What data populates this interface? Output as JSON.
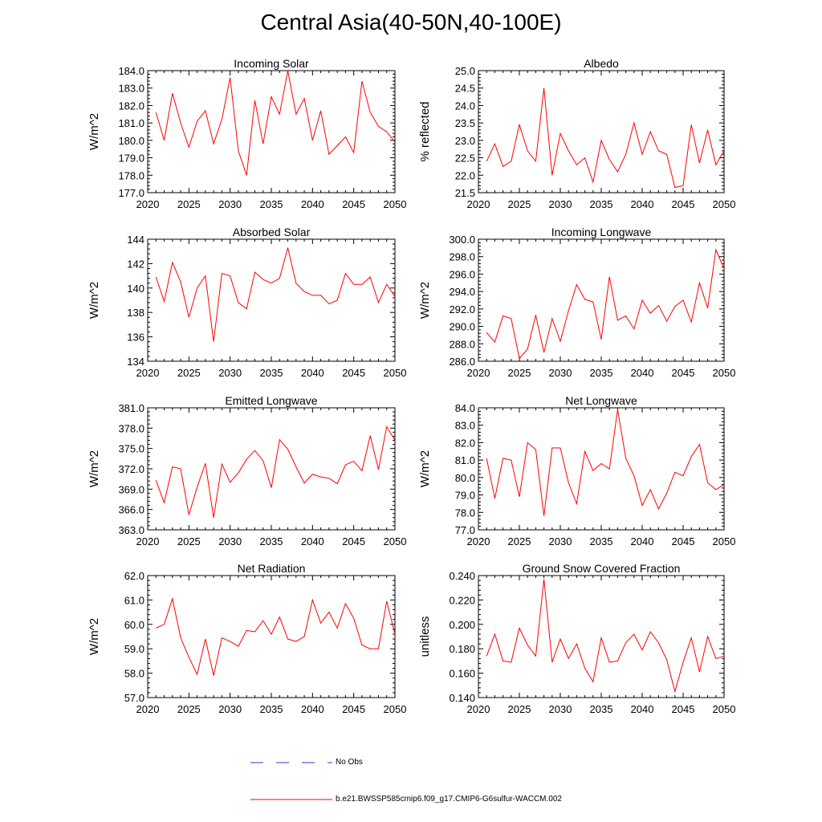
{
  "title": "Central Asia(40-50N,40-100E)",
  "colors": {
    "series": "#ff0000",
    "no_obs": "#3333cc",
    "axis": "#000000"
  },
  "legend": {
    "no_obs_label": "No Obs",
    "series_label": "b.e21.BWSSP585cmip6.f09_g17.CMIP6-G6sulfur-WACCM.002"
  },
  "chart_data": [
    {
      "type": "line",
      "title": "Incoming Solar",
      "ylabel": "W/m^2",
      "xlim": [
        2020,
        2050
      ],
      "ylim": [
        177.0,
        184.0
      ],
      "xticks": [
        2020,
        2025,
        2030,
        2035,
        2040,
        2045,
        2050
      ],
      "yticks": [
        "177.0",
        "178.0",
        "179.0",
        "180.0",
        "181.0",
        "182.0",
        "183.0",
        "184.0"
      ],
      "series": [
        {
          "x": [
            2021,
            2022,
            2023,
            2024,
            2025,
            2026,
            2027,
            2028,
            2029,
            2030,
            2031,
            2032,
            2033,
            2034,
            2035,
            2036,
            2037,
            2038,
            2039,
            2040,
            2041,
            2042,
            2043,
            2044,
            2045,
            2046,
            2047,
            2048,
            2049,
            2050
          ],
          "values": [
            181.6,
            180.0,
            182.7,
            181.0,
            179.6,
            181.1,
            181.7,
            179.8,
            181.2,
            183.6,
            179.4,
            178.0,
            182.3,
            179.8,
            182.5,
            181.5,
            184.0,
            181.5,
            182.4,
            180.0,
            181.7,
            179.2,
            179.7,
            180.2,
            179.3,
            183.4,
            181.6,
            180.8,
            180.5,
            179.9
          ]
        }
      ]
    },
    {
      "type": "line",
      "title": "Albedo",
      "ylabel": "% reflected",
      "xlim": [
        2020,
        2050
      ],
      "ylim": [
        21.5,
        25.0
      ],
      "xticks": [
        2020,
        2025,
        2030,
        2035,
        2040,
        2045,
        2050
      ],
      "yticks": [
        "21.5",
        "22.0",
        "22.5",
        "23.0",
        "23.5",
        "24.0",
        "24.5",
        "25.0"
      ],
      "series": [
        {
          "x": [
            2021,
            2022,
            2023,
            2024,
            2025,
            2026,
            2027,
            2028,
            2029,
            2030,
            2031,
            2032,
            2033,
            2034,
            2035,
            2036,
            2037,
            2038,
            2039,
            2040,
            2041,
            2042,
            2043,
            2044,
            2045,
            2046,
            2047,
            2048,
            2049,
            2050
          ],
          "values": [
            22.4,
            22.9,
            22.25,
            22.4,
            23.45,
            22.7,
            22.4,
            24.5,
            22.0,
            23.2,
            22.7,
            22.3,
            22.5,
            21.8,
            23.0,
            22.45,
            22.1,
            22.6,
            23.5,
            22.6,
            23.25,
            22.7,
            22.6,
            21.65,
            21.7,
            23.45,
            22.35,
            23.3,
            22.3,
            22.7
          ]
        }
      ]
    },
    {
      "type": "line",
      "title": "Absorbed Solar",
      "ylabel": "W/m^2",
      "xlim": [
        2020,
        2050
      ],
      "ylim": [
        134,
        144
      ],
      "xticks": [
        2020,
        2025,
        2030,
        2035,
        2040,
        2045,
        2050
      ],
      "yticks": [
        "134",
        "136",
        "138",
        "140",
        "142",
        "144"
      ],
      "series": [
        {
          "x": [
            2021,
            2022,
            2023,
            2024,
            2025,
            2026,
            2027,
            2028,
            2029,
            2030,
            2031,
            2032,
            2033,
            2034,
            2035,
            2036,
            2037,
            2038,
            2039,
            2040,
            2041,
            2042,
            2043,
            2044,
            2045,
            2046,
            2047,
            2048,
            2049,
            2050
          ],
          "values": [
            140.9,
            138.9,
            142.1,
            140.5,
            137.6,
            140.0,
            141.0,
            135.6,
            141.2,
            141.0,
            138.8,
            138.3,
            141.3,
            140.7,
            140.4,
            140.8,
            143.3,
            140.4,
            139.7,
            139.4,
            139.4,
            138.7,
            139.0,
            141.2,
            140.3,
            140.3,
            140.9,
            138.8,
            140.3,
            139.3
          ]
        }
      ]
    },
    {
      "type": "line",
      "title": "Incoming Longwave",
      "ylabel": "W/m^2",
      "xlim": [
        2020,
        2050
      ],
      "ylim": [
        286.0,
        300.0
      ],
      "xticks": [
        2020,
        2025,
        2030,
        2035,
        2040,
        2045,
        2050
      ],
      "yticks": [
        "286.0",
        "288.0",
        "290.0",
        "292.0",
        "294.0",
        "296.0",
        "298.0",
        "300.0"
      ],
      "series": [
        {
          "x": [
            2021,
            2022,
            2023,
            2024,
            2025,
            2026,
            2027,
            2028,
            2029,
            2030,
            2031,
            2032,
            2033,
            2034,
            2035,
            2036,
            2037,
            2038,
            2039,
            2040,
            2041,
            2042,
            2043,
            2044,
            2045,
            2046,
            2047,
            2048,
            2049,
            2050
          ],
          "values": [
            289.3,
            288.2,
            291.2,
            290.9,
            286.3,
            287.4,
            291.3,
            287.0,
            290.9,
            288.3,
            291.8,
            294.8,
            293.1,
            292.8,
            288.5,
            295.7,
            290.7,
            291.2,
            289.7,
            293.0,
            291.5,
            292.4,
            290.6,
            292.3,
            293.0,
            290.5,
            295.0,
            292.1,
            298.8,
            296.6
          ]
        }
      ]
    },
    {
      "type": "line",
      "title": "Emitted Longwave",
      "ylabel": "W/m^2",
      "xlim": [
        2020,
        2050
      ],
      "ylim": [
        363.0,
        381.0
      ],
      "xticks": [
        2020,
        2025,
        2030,
        2035,
        2040,
        2045,
        2050
      ],
      "yticks": [
        "363.0",
        "366.0",
        "369.0",
        "372.0",
        "375.0",
        "378.0",
        "381.0"
      ],
      "series": [
        {
          "x": [
            2021,
            2022,
            2023,
            2024,
            2025,
            2026,
            2027,
            2028,
            2029,
            2030,
            2031,
            2032,
            2033,
            2034,
            2035,
            2036,
            2037,
            2038,
            2039,
            2040,
            2041,
            2042,
            2043,
            2044,
            2045,
            2046,
            2047,
            2048,
            2049,
            2050
          ],
          "values": [
            370.3,
            367.0,
            372.3,
            372.0,
            365.2,
            369.3,
            372.8,
            364.8,
            372.7,
            370.0,
            371.4,
            373.4,
            374.7,
            373.2,
            369.2,
            376.3,
            374.9,
            372.3,
            369.9,
            371.2,
            370.8,
            370.6,
            369.8,
            372.6,
            373.1,
            371.7,
            376.9,
            371.9,
            378.2,
            376.2
          ]
        }
      ]
    },
    {
      "type": "line",
      "title": "Net Longwave",
      "ylabel": "W/m^2",
      "xlim": [
        2020,
        2050
      ],
      "ylim": [
        77.0,
        84.0
      ],
      "xticks": [
        2020,
        2025,
        2030,
        2035,
        2040,
        2045,
        2050
      ],
      "yticks": [
        "77.0",
        "78.0",
        "79.0",
        "80.0",
        "81.0",
        "82.0",
        "83.0",
        "84.0"
      ],
      "series": [
        {
          "x": [
            2021,
            2022,
            2023,
            2024,
            2025,
            2026,
            2027,
            2028,
            2029,
            2030,
            2031,
            2032,
            2033,
            2034,
            2035,
            2036,
            2037,
            2038,
            2039,
            2040,
            2041,
            2042,
            2043,
            2044,
            2045,
            2046,
            2047,
            2048,
            2049,
            2050
          ],
          "values": [
            81.1,
            78.8,
            81.1,
            81.0,
            78.9,
            82.0,
            81.6,
            77.8,
            81.7,
            81.7,
            79.7,
            78.5,
            81.5,
            80.4,
            80.8,
            80.5,
            83.9,
            81.1,
            80.1,
            78.4,
            79.3,
            78.2,
            79.1,
            80.3,
            80.1,
            81.2,
            81.9,
            79.7,
            79.3,
            79.6
          ]
        }
      ]
    },
    {
      "type": "line",
      "title": "Net Radiation",
      "ylabel": "W/m^2",
      "xlim": [
        2020,
        2050
      ],
      "ylim": [
        57.0,
        62.0
      ],
      "xticks": [
        2020,
        2025,
        2030,
        2035,
        2040,
        2045,
        2050
      ],
      "yticks": [
        "57.0",
        "58.0",
        "59.0",
        "60.0",
        "61.0",
        "62.0"
      ],
      "series": [
        {
          "x": [
            2021,
            2022,
            2023,
            2024,
            2025,
            2026,
            2027,
            2028,
            2029,
            2030,
            2031,
            2032,
            2033,
            2034,
            2035,
            2036,
            2037,
            2038,
            2039,
            2040,
            2041,
            2042,
            2043,
            2044,
            2045,
            2046,
            2047,
            2048,
            2049,
            2050
          ],
          "values": [
            59.85,
            60.0,
            61.05,
            59.45,
            58.65,
            57.95,
            59.4,
            57.9,
            59.45,
            59.3,
            59.1,
            59.75,
            59.7,
            60.15,
            59.6,
            60.3,
            59.4,
            59.3,
            59.5,
            61.0,
            60.05,
            60.5,
            59.85,
            60.85,
            60.25,
            59.15,
            59.0,
            59.0,
            60.95,
            59.6
          ]
        }
      ]
    },
    {
      "type": "line",
      "title": "Ground Snow Covered Fraction",
      "ylabel": "unitless",
      "xlim": [
        2020,
        2050
      ],
      "ylim": [
        0.14,
        0.24
      ],
      "xticks": [
        2020,
        2025,
        2030,
        2035,
        2040,
        2045,
        2050
      ],
      "yticks": [
        "0.140",
        "0.160",
        "0.180",
        "0.200",
        "0.220",
        "0.240"
      ],
      "series": [
        {
          "x": [
            2021,
            2022,
            2023,
            2024,
            2025,
            2026,
            2027,
            2028,
            2029,
            2030,
            2031,
            2032,
            2033,
            2034,
            2035,
            2036,
            2037,
            2038,
            2039,
            2040,
            2041,
            2042,
            2043,
            2044,
            2045,
            2046,
            2047,
            2048,
            2049,
            2050
          ],
          "values": [
            0.174,
            0.192,
            0.17,
            0.169,
            0.197,
            0.183,
            0.174,
            0.237,
            0.169,
            0.188,
            0.172,
            0.184,
            0.164,
            0.153,
            0.189,
            0.169,
            0.17,
            0.185,
            0.192,
            0.179,
            0.194,
            0.185,
            0.171,
            0.145,
            0.169,
            0.189,
            0.161,
            0.19,
            0.172,
            0.174
          ]
        }
      ]
    }
  ]
}
